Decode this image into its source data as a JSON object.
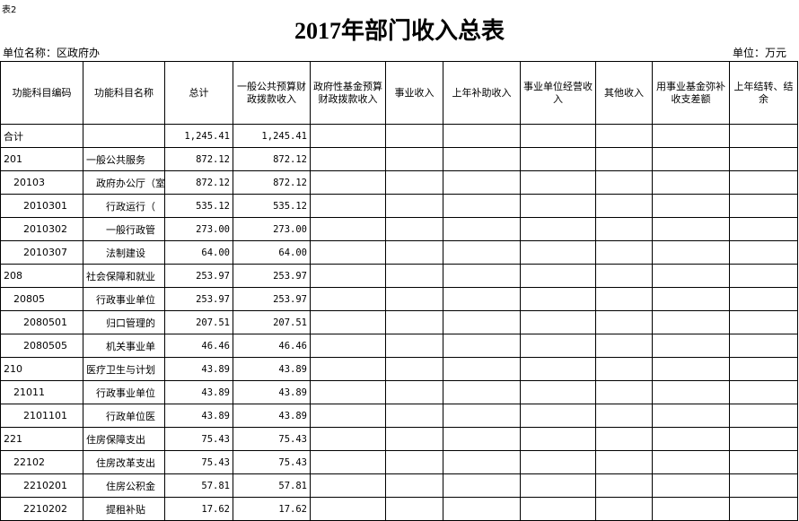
{
  "header": {
    "table_no": "表2",
    "title": "2017年部门收入总表",
    "unit_name": "单位名称：区政府办",
    "unit": "单位：万元"
  },
  "table": {
    "columns": [
      "功能科目编码",
      "功能科目名称",
      "总计",
      "一般公共预算财政拨款收入",
      "政府性基金预算财政拨款收入",
      "事业收入",
      "上年补助收入",
      "事业单位经营收入",
      "其他收入",
      "用事业基金弥补收支差额",
      "上年结转、结余"
    ],
    "rows": [
      {
        "code": "合计",
        "total": "1,245.41",
        "general": "1,245.41"
      },
      {
        "code": "201",
        "name": "一般公共服务",
        "total": "872.12",
        "general": "872.12"
      },
      {
        "code": "20103",
        "name": "政府办公厅（室",
        "total": "872.12",
        "general": "872.12"
      },
      {
        "code": "2010301",
        "name": "行政运行（",
        "total": "535.12",
        "general": "535.12"
      },
      {
        "code": "2010302",
        "name": "一般行政管",
        "total": "273.00",
        "general": "273.00"
      },
      {
        "code": "2010307",
        "name": "法制建设",
        "total": "64.00",
        "general": "64.00"
      },
      {
        "code": "208",
        "name": "社会保障和就业",
        "total": "253.97",
        "general": "253.97"
      },
      {
        "code": "20805",
        "name": "行政事业单位",
        "total": "253.97",
        "general": "253.97"
      },
      {
        "code": "2080501",
        "name": "归口管理的",
        "total": "207.51",
        "general": "207.51"
      },
      {
        "code": "2080505",
        "name": "机关事业单",
        "total": "46.46",
        "general": "46.46"
      },
      {
        "code": "210",
        "name": "医疗卫生与计划",
        "total": "43.89",
        "general": "43.89"
      },
      {
        "code": "21011",
        "name": "行政事业单位",
        "total": "43.89",
        "general": "43.89"
      },
      {
        "code": "2101101",
        "name": "行政单位医",
        "total": "43.89",
        "general": "43.89"
      },
      {
        "code": "221",
        "name": "住房保障支出",
        "total": "75.43",
        "general": "75.43"
      },
      {
        "code": "22102",
        "name": "住房改革支出",
        "total": "75.43",
        "general": "75.43"
      },
      {
        "code": "2210201",
        "name": "住房公积金",
        "total": "57.81",
        "general": "57.81"
      },
      {
        "code": "2210202",
        "name": "提租补贴",
        "total": "17.62",
        "general": "17.62"
      }
    ]
  }
}
